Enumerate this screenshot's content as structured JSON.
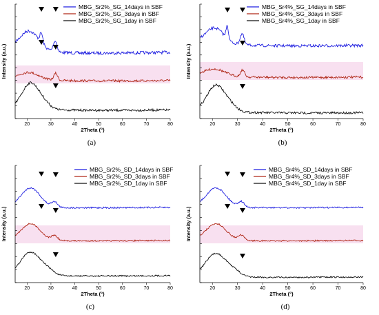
{
  "colors": {
    "14days": "#1f1fe0",
    "3days": "#b02818",
    "1day": "#101010",
    "band": "#f3c6e4",
    "marker": "#000000"
  },
  "chart_data": [
    {
      "panel": "(a)",
      "type": "line",
      "xlabel": "2Theta (°)",
      "ylabel": "Intensity (a.u.)",
      "xlim": [
        15,
        80
      ],
      "xticks": [
        20,
        30,
        40,
        50,
        60,
        70,
        80
      ],
      "series": [
        {
          "name": "MBG_Sr2%_SG_14days in SBF",
          "color_key": "14days",
          "shape": "sg14",
          "peak_x": [
            26,
            32
          ],
          "approx_x": [
            15,
            22,
            25.5,
            31.5,
            45,
            80
          ],
          "approx_rel_y": [
            0.7,
            1.0,
            0.85,
            0.6,
            0.15,
            0.05
          ]
        },
        {
          "name": "MBG_Sr2%_SG_3days in SBF",
          "color_key": "3days",
          "shape": "sg3",
          "peak_x": [
            26,
            32
          ],
          "approx_x": [
            15,
            22,
            25.5,
            32,
            45,
            80
          ],
          "approx_rel_y": [
            0.55,
            0.6,
            0.5,
            0.55,
            0.15,
            0.05
          ]
        },
        {
          "name": "MBG_Sr2%_SG_1day in SBF",
          "color_key": "1day",
          "shape": "sg1",
          "peak_x": [
            32
          ],
          "approx_x": [
            15,
            22,
            32,
            45,
            80
          ],
          "approx_rel_y": [
            0.35,
            1.0,
            0.35,
            0.12,
            0.03
          ]
        }
      ],
      "markers": [
        {
          "series": "MBG_Sr2%_SG_14days in SBF",
          "x": [
            26,
            32
          ]
        },
        {
          "series": "MBG_Sr2%_SG_3days in SBF",
          "x": [
            26,
            32
          ]
        },
        {
          "series": "MBG_Sr2%_SG_1day in SBF",
          "x": [
            32
          ]
        }
      ],
      "legend_position": "top-right"
    },
    {
      "panel": "(b)",
      "type": "line",
      "xlabel": "2Theta (°)",
      "ylabel": "Intensity (a.u.)",
      "xlim": [
        15,
        80
      ],
      "xticks": [
        20,
        30,
        40,
        50,
        60,
        70,
        80
      ],
      "series": [
        {
          "name": "MBG_Sr4%_SG_14days in SBF",
          "color_key": "14days",
          "shape": "sg14b",
          "peak_x": [
            26,
            32
          ]
        },
        {
          "name": "MBG_Sr4%_SG_3days in SBF",
          "color_key": "3days",
          "shape": "sg3",
          "peak_x": [
            26,
            32
          ]
        },
        {
          "name": "MBG_Sr4%_SG_1day in SBF",
          "color_key": "1day",
          "shape": "sg1",
          "peak_x": [
            32
          ]
        }
      ],
      "markers": [
        {
          "series": "MBG_Sr4%_SG_14days in SBF",
          "x": [
            26,
            32
          ]
        },
        {
          "series": "MBG_Sr4%_SG_3days in SBF",
          "x": [
            32
          ]
        },
        {
          "series": "MBG_Sr4%_SG_1day in SBF",
          "x": [
            32
          ]
        }
      ],
      "legend_position": "top-right"
    },
    {
      "panel": "(c)",
      "type": "line",
      "xlabel": "2Theta (°)",
      "ylabel": "Intensity (a.u.)",
      "xlim": [
        15,
        80
      ],
      "xticks": [
        20,
        30,
        40,
        50,
        60,
        70,
        80
      ],
      "series": [
        {
          "name": "MBG_Sr2%_SD_14days in SBF",
          "color_key": "14days",
          "shape": "sd14",
          "peak_x": [
            26,
            32
          ]
        },
        {
          "name": "MBG_Sr2%_SD_3days in SBF",
          "color_key": "3days",
          "shape": "sd3",
          "peak_x": [
            26,
            32
          ]
        },
        {
          "name": "MBG_Sr2%_SD_1day in SBF",
          "color_key": "1day",
          "shape": "sd1",
          "peak_x": [
            32
          ]
        }
      ],
      "markers": [
        {
          "series": "MBG_Sr2%_SD_14days in SBF",
          "x": [
            26,
            32
          ]
        },
        {
          "series": "MBG_Sr2%_SD_3days in SBF",
          "x": [
            26,
            32
          ]
        },
        {
          "series": "MBG_Sr2%_SD_1day in SBF",
          "x": [
            32
          ]
        }
      ],
      "legend_position": "top-right"
    },
    {
      "panel": "(d)",
      "type": "line",
      "xlabel": "2Theta (°)",
      "ylabel": "Intensity (a.u.)",
      "xlim": [
        15,
        80
      ],
      "xticks": [
        20,
        30,
        40,
        50,
        60,
        70,
        80
      ],
      "series": [
        {
          "name": "MBG_Sr4%_SD_14days in SBF",
          "color_key": "14days",
          "shape": "sd14",
          "peak_x": [
            26,
            32
          ]
        },
        {
          "name": "MBG_Sr4%_SD_3days in SBF",
          "color_key": "3days",
          "shape": "sd3",
          "peak_x": [
            26,
            32
          ]
        },
        {
          "name": "MBG_Sr4%_SD_1day in SBF",
          "color_key": "1day",
          "shape": "sd1",
          "peak_x": [
            32
          ]
        }
      ],
      "markers": [
        {
          "series": "MBG_Sr4%_SD_14days in SBF",
          "x": [
            26,
            32
          ]
        },
        {
          "series": "MBG_Sr4%_SD_3days in SBF",
          "x": [
            26,
            32
          ]
        },
        {
          "series": "MBG_Sr4%_SD_1day in SBF",
          "x": [
            32
          ]
        }
      ],
      "legend_position": "top-right"
    }
  ]
}
